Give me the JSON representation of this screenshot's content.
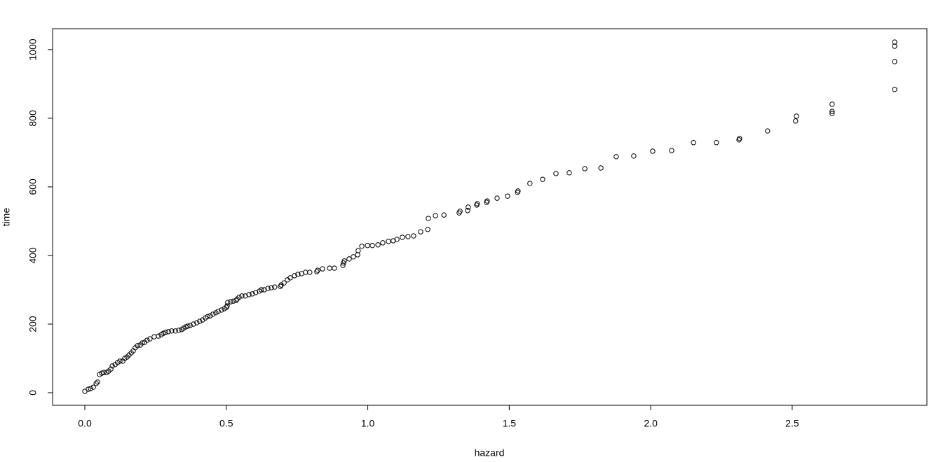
{
  "chart_data": {
    "type": "scatter",
    "x_label": "hazard",
    "y_label": "time",
    "color": "#000000",
    "xlim": [
      -0.114,
      2.976
    ],
    "ylim": [
      -36.7,
      1061
    ],
    "xticks": [
      {
        "value": 0,
        "label": "0.0"
      },
      0.5,
      {
        "value": 1,
        "label": "1.0"
      },
      1.5,
      {
        "value": 2,
        "label": "2.0"
      },
      2.5
    ],
    "yticks": [
      0,
      200,
      400,
      600,
      800,
      1000
    ],
    "x": [
      0.0,
      0.012,
      0.02,
      0.03,
      0.04,
      0.045,
      0.052,
      0.06,
      0.067,
      0.077,
      0.084,
      0.092,
      0.097,
      0.107,
      0.116,
      0.124,
      0.134,
      0.141,
      0.149,
      0.156,
      0.164,
      0.171,
      0.178,
      0.186,
      0.196,
      0.203,
      0.211,
      0.22,
      0.23,
      0.245,
      0.26,
      0.27,
      0.277,
      0.285,
      0.295,
      0.307,
      0.32,
      0.332,
      0.342,
      0.349,
      0.357,
      0.364,
      0.372,
      0.384,
      0.396,
      0.406,
      0.416,
      0.426,
      0.434,
      0.443,
      0.453,
      0.463,
      0.471,
      0.483,
      0.493,
      0.5,
      0.503,
      0.505,
      0.515,
      0.525,
      0.535,
      0.538,
      0.545,
      0.555,
      0.567,
      0.58,
      0.592,
      0.604,
      0.617,
      0.624,
      0.634,
      0.647,
      0.659,
      0.671,
      0.691,
      0.694,
      0.704,
      0.716,
      0.726,
      0.741,
      0.753,
      0.766,
      0.78,
      0.795,
      0.82,
      0.823,
      0.84,
      0.865,
      0.882,
      0.912,
      0.914,
      0.917,
      0.934,
      0.949,
      0.964,
      0.966,
      0.979,
      0.999,
      1.016,
      1.036,
      1.053,
      1.073,
      1.09,
      1.103,
      1.122,
      1.142,
      1.162,
      1.187,
      1.212,
      1.214,
      1.239,
      1.269,
      1.323,
      1.326,
      1.353,
      1.355,
      1.385,
      1.387,
      1.42,
      1.422,
      1.457,
      1.494,
      1.529,
      1.531,
      1.573,
      1.618,
      1.665,
      1.712,
      1.767,
      1.824,
      1.878,
      1.94,
      2.007,
      2.074,
      2.151,
      2.232,
      2.312,
      2.314,
      2.413,
      2.512,
      2.515,
      2.641,
      2.641,
      2.641,
      2.862,
      2.862,
      2.862,
      2.862
    ],
    "y": [
      4,
      10,
      12,
      16,
      27,
      31,
      53,
      57,
      59,
      59,
      63,
      69,
      78,
      82,
      88,
      92,
      92,
      100,
      104,
      110,
      116,
      122,
      131,
      137,
      139,
      145,
      147,
      153,
      157,
      163,
      165,
      169,
      173,
      176,
      178,
      180,
      180,
      182,
      184,
      188,
      192,
      194,
      196,
      200,
      204,
      208,
      212,
      218,
      222,
      224,
      229,
      233,
      237,
      241,
      245,
      249,
      253,
      263,
      265,
      267,
      269,
      273,
      278,
      282,
      282,
      286,
      288,
      292,
      296,
      300,
      300,
      304,
      306,
      308,
      310,
      314,
      320,
      329,
      335,
      341,
      345,
      347,
      351,
      351,
      353,
      357,
      361,
      363,
      363,
      371,
      378,
      384,
      390,
      396,
      402,
      414,
      427,
      429,
      429,
      431,
      437,
      441,
      443,
      447,
      453,
      455,
      457,
      469,
      476,
      508,
      516,
      518,
      524,
      529,
      531,
      541,
      547,
      551,
      555,
      559,
      567,
      573,
      584,
      588,
      610,
      622,
      639,
      641,
      653,
      655,
      688,
      690,
      704,
      706,
      729,
      729,
      737,
      741,
      763,
      792,
      806,
      814,
      820,
      841,
      884,
      965,
      1010,
      1022
    ]
  }
}
